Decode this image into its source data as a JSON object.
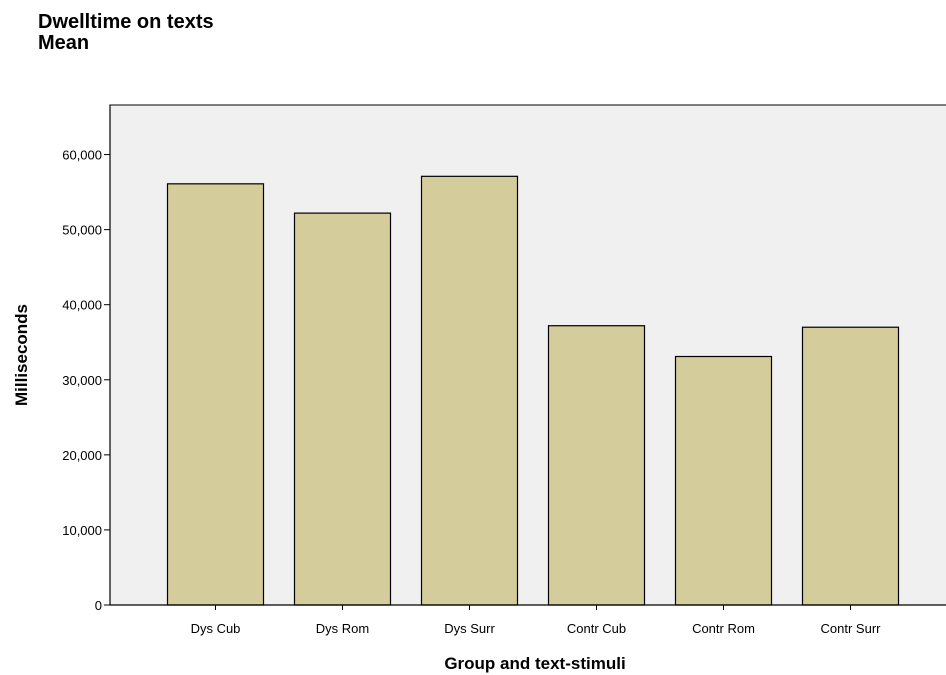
{
  "chart_data": {
    "type": "bar",
    "title": "Dwelltime on texts",
    "subtitle": "Mean",
    "xlabel": "Group and text-stimuli",
    "ylabel": "Milliseconds",
    "categories": [
      "Dys Cub",
      "Dys Rom",
      "Dys Surr",
      "Contr Cub",
      "Contr Rom",
      "Contr Surr"
    ],
    "values": [
      56100,
      52200,
      57100,
      37200,
      33100,
      37000
    ],
    "ylim": [
      0,
      66600
    ],
    "yticks": [
      0,
      10000,
      20000,
      30000,
      40000,
      50000,
      60000
    ],
    "ytick_labels": [
      "0",
      "10,000",
      "20,000",
      "30,000",
      "40,000",
      "50,000",
      "60,000"
    ],
    "grid": false,
    "legend": "none",
    "colors": {
      "bar_fill": "#d4cc9b",
      "bar_stroke": "#000000",
      "plot_background": "#f0f0f0"
    }
  }
}
